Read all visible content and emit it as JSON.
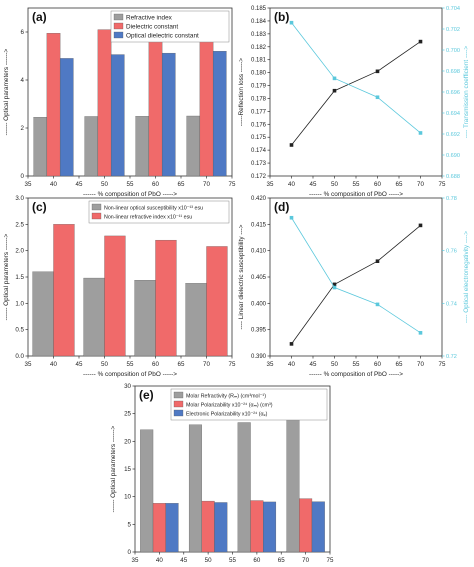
{
  "chart_data": [
    {
      "id": "a",
      "panel_label": "(a)",
      "type": "bar",
      "categories": [
        "40",
        "50",
        "60",
        "70"
      ],
      "xlim": [
        35,
        75
      ],
      "xticks": [
        "35",
        "40",
        "45",
        "50",
        "55",
        "60",
        "65",
        "70",
        "75"
      ],
      "ylim": [
        0,
        7
      ],
      "yticks": [
        "0",
        "2",
        "4",
        "6"
      ],
      "xlabel": "------ % composition of PbO ----->",
      "ylabel": "------ Optical parameters ------>",
      "legend": {
        "placement": "top-right"
      },
      "series": [
        {
          "name": "Refractive index",
          "color": "#9e9e9e",
          "values": [
            2.45,
            2.48,
            2.49,
            2.5
          ]
        },
        {
          "name": "Dielectric constant",
          "color": "#f06a6a",
          "values": [
            5.95,
            6.1,
            6.15,
            6.22
          ]
        },
        {
          "name": "Optical dielectric constant",
          "color": "#4f79c4",
          "values": [
            4.9,
            5.06,
            5.12,
            5.2
          ]
        }
      ]
    },
    {
      "id": "b",
      "panel_label": "(b)",
      "type": "line",
      "x": [
        40,
        50,
        60,
        70
      ],
      "xlim": [
        35,
        75
      ],
      "xticks": [
        "35",
        "40",
        "45",
        "50",
        "55",
        "60",
        "65",
        "70",
        "75"
      ],
      "xlabel": "------ % composition of PbO ----->",
      "left_axis": {
        "label": "-----Reflection loss ----->",
        "ylim": [
          0.172,
          0.185
        ],
        "yticks": [
          "0.172",
          "0.173",
          "0.174",
          "0.175",
          "0.176",
          "0.177",
          "0.178",
          "0.179",
          "0.180",
          "0.181",
          "0.182",
          "0.183",
          "0.184",
          "0.185"
        ],
        "color": "#222222",
        "values": [
          0.1744,
          0.1786,
          0.1801,
          0.1824
        ]
      },
      "right_axis": {
        "label": "---- Transmission coefficient ---->",
        "ylim": [
          0.688,
          0.704
        ],
        "yticks": [
          "0.688",
          "0.690",
          "0.692",
          "0.694",
          "0.696",
          "0.698",
          "0.700",
          "0.702",
          "0.704"
        ],
        "color": "#5bc8dc",
        "values": [
          0.7026,
          0.6973,
          0.6955,
          0.6921
        ]
      }
    },
    {
      "id": "c",
      "panel_label": "(c)",
      "type": "bar",
      "categories": [
        "40",
        "50",
        "60",
        "70"
      ],
      "xlim": [
        35,
        75
      ],
      "xticks": [
        "35",
        "40",
        "45",
        "50",
        "55",
        "60",
        "65",
        "70",
        "75"
      ],
      "ylim": [
        0,
        3.0
      ],
      "yticks": [
        "0.0",
        "0.5",
        "1.0",
        "1.5",
        "2.0",
        "2.5",
        "3.0"
      ],
      "xlabel": "------ % composition of PbO ----->",
      "ylabel": "------ Optical parameters ------>",
      "legend": {
        "placement": "top-right"
      },
      "series": [
        {
          "name": "Non-linear optical susceptibility x10⁻¹³ esu",
          "color": "#9e9e9e",
          "values": [
            1.6,
            1.48,
            1.44,
            1.38
          ]
        },
        {
          "name": "Non-linear refractive index x10⁻¹¹ esu",
          "color": "#f06a6a",
          "values": [
            2.5,
            2.28,
            2.2,
            2.08
          ]
        }
      ]
    },
    {
      "id": "d",
      "panel_label": "(d)",
      "type": "line",
      "x": [
        40,
        50,
        60,
        70
      ],
      "xlim": [
        35,
        75
      ],
      "xticks": [
        "35",
        "40",
        "45",
        "50",
        "55",
        "60",
        "65",
        "70",
        "75"
      ],
      "xlabel": "------ % composition of PbO ----->",
      "left_axis": {
        "label": "---- Linear dielectric susceptibility --->",
        "ylim": [
          0.39,
          0.42
        ],
        "yticks": [
          "0.390",
          "0.395",
          "0.400",
          "0.405",
          "0.410",
          "0.415",
          "0.420"
        ],
        "color": "#222222",
        "values": [
          0.3923,
          0.4036,
          0.408,
          0.4148
        ]
      },
      "right_axis": {
        "label": "---- Optical electronegativity ---->",
        "ylim": [
          0.72,
          0.78
        ],
        "yticks": [
          "0.72",
          "0.74",
          "0.76",
          "0.78"
        ],
        "color": "#5bc8dc",
        "values": [
          0.7725,
          0.746,
          0.7396,
          0.7288
        ]
      }
    },
    {
      "id": "e",
      "panel_label": "(e)",
      "type": "bar",
      "categories": [
        "40",
        "50",
        "60",
        "70"
      ],
      "xlim": [
        35,
        75
      ],
      "xticks": [
        "35",
        "40",
        "45",
        "50",
        "55",
        "60",
        "65",
        "70",
        "75"
      ],
      "ylim": [
        0,
        30
      ],
      "yticks": [
        "0",
        "5",
        "10",
        "15",
        "20",
        "25",
        "30"
      ],
      "xlabel": "------- % composition of PbO ----->",
      "ylabel": "------ Optical parameters ------>",
      "legend": {
        "placement": "top-right"
      },
      "series": [
        {
          "name": "Molar Refractivity (Rₘ) (cm³mol⁻¹)",
          "color": "#9e9e9e",
          "values": [
            22.1,
            23.0,
            23.4,
            24.3
          ]
        },
        {
          "name": "Molar Polarizability x10⁻²⁴ (αₘ) (cm³)",
          "color": "#f06a6a",
          "values": [
            8.8,
            9.2,
            9.3,
            9.65
          ]
        },
        {
          "name": "Electronic Polarizability x10⁻²⁴ (αₑ)",
          "color": "#4f79c4",
          "values": [
            8.8,
            8.95,
            9.05,
            9.1
          ]
        }
      ]
    }
  ]
}
